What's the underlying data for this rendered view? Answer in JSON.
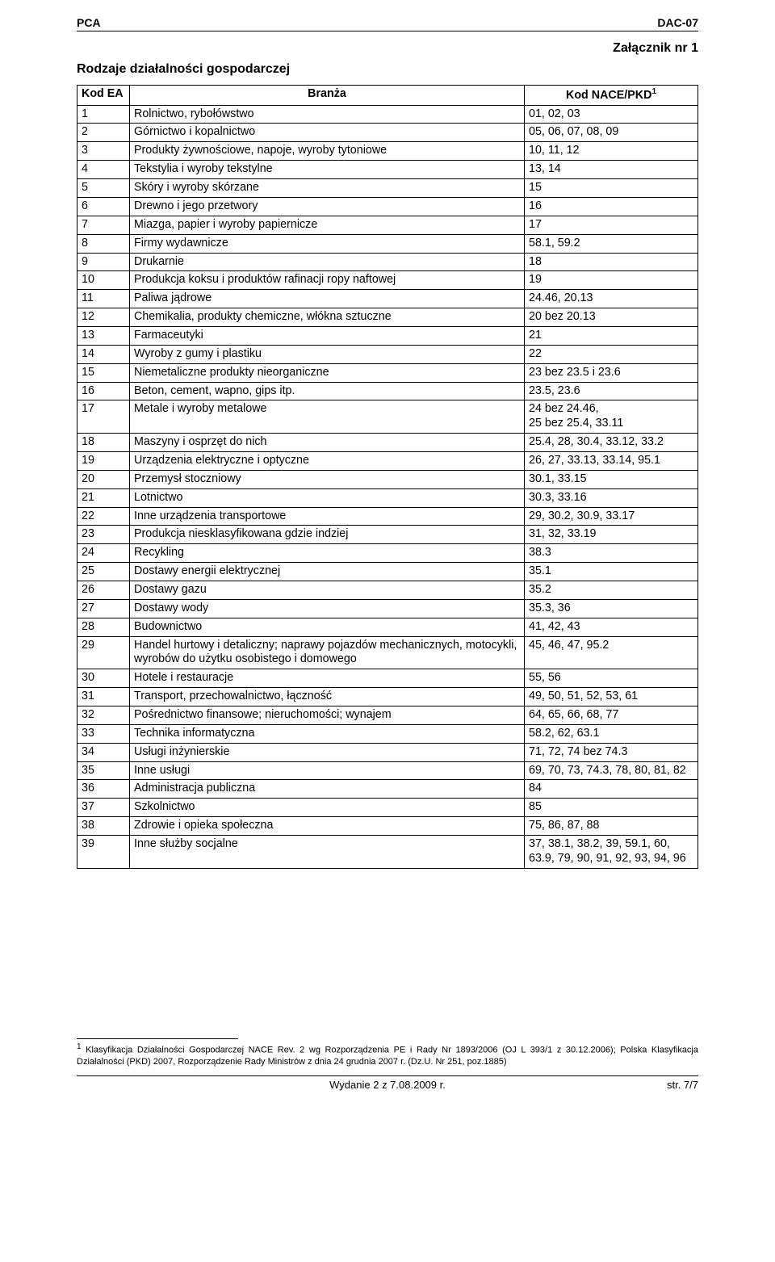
{
  "header": {
    "left": "PCA",
    "right": "DAC-07"
  },
  "section_title": "Rodzaje działalności gospodarczej",
  "attachment_label": "Załącznik nr 1",
  "table": {
    "columns": [
      "Kod EA",
      "Branża",
      "Kod NACE/PKD"
    ],
    "header_sup": "1",
    "rows": [
      [
        "1",
        "Rolnictwo, rybołówstwo",
        "01, 02, 03"
      ],
      [
        "2",
        "Górnictwo i kopalnictwo",
        "05, 06, 07, 08, 09"
      ],
      [
        "3",
        "Produkty żywnościowe, napoje, wyroby tytoniowe",
        "10, 11, 12"
      ],
      [
        "4",
        "Tekstylia i wyroby tekstylne",
        "13, 14"
      ],
      [
        "5",
        "Skóry i wyroby skórzane",
        "15"
      ],
      [
        "6",
        "Drewno i jego przetwory",
        "16"
      ],
      [
        "7",
        "Miazga, papier i wyroby papiernicze",
        "17"
      ],
      [
        "8",
        "Firmy wydawnicze",
        "58.1, 59.2"
      ],
      [
        "9",
        "Drukarnie",
        "18"
      ],
      [
        "10",
        "Produkcja koksu i produktów rafinacji ropy naftowej",
        "19"
      ],
      [
        "11",
        "Paliwa jądrowe",
        "24.46, 20.13"
      ],
      [
        "12",
        "Chemikalia, produkty chemiczne, włókna sztuczne",
        "20 bez 20.13"
      ],
      [
        "13",
        "Farmaceutyki",
        "21"
      ],
      [
        "14",
        "Wyroby z gumy i plastiku",
        "22"
      ],
      [
        "15",
        "Niemetaliczne produkty nieorganiczne",
        "23 bez 23.5 i 23.6"
      ],
      [
        "16",
        "Beton, cement, wapno, gips itp.",
        "23.5, 23.6"
      ],
      [
        "17",
        "Metale i wyroby metalowe",
        "24 bez 24.46,\n25 bez 25.4, 33.11"
      ],
      [
        "18",
        "Maszyny i osprzęt do nich",
        "25.4, 28, 30.4, 33.12, 33.2"
      ],
      [
        "19",
        "Urządzenia elektryczne i optyczne",
        "26, 27, 33.13, 33.14, 95.1"
      ],
      [
        "20",
        "Przemysł stoczniowy",
        "30.1, 33.15"
      ],
      [
        "21",
        "Lotnictwo",
        "30.3, 33.16"
      ],
      [
        "22",
        "Inne urządzenia transportowe",
        "29, 30.2, 30.9, 33.17"
      ],
      [
        "23",
        "Produkcja niesklasyfikowana gdzie indziej",
        "31, 32, 33.19"
      ],
      [
        "24",
        "Recykling",
        "38.3"
      ],
      [
        "25",
        "Dostawy energii elektrycznej",
        "35.1"
      ],
      [
        "26",
        "Dostawy gazu",
        "35.2"
      ],
      [
        "27",
        "Dostawy wody",
        "35.3, 36"
      ],
      [
        "28",
        "Budownictwo",
        "41, 42, 43"
      ],
      [
        "29",
        "Handel hurtowy i detaliczny; naprawy pojazdów mechanicznych, motocykli, wyrobów do użytku osobistego i domowego",
        "45, 46, 47, 95.2"
      ],
      [
        "30",
        "Hotele i restauracje",
        "55, 56"
      ],
      [
        "31",
        "Transport, przechowalnictwo, łączność",
        "49, 50, 51, 52, 53, 61"
      ],
      [
        "32",
        "Pośrednictwo finansowe; nieruchomości; wynajem",
        "64, 65, 66, 68, 77"
      ],
      [
        "33",
        "Technika informatyczna",
        "58.2, 62, 63.1"
      ],
      [
        "34",
        "Usługi inżynierskie",
        "71, 72, 74 bez 74.3"
      ],
      [
        "35",
        "Inne usługi",
        "69, 70, 73, 74.3, 78, 80, 81, 82"
      ],
      [
        "36",
        "Administracja publiczna",
        "84"
      ],
      [
        "37",
        "Szkolnictwo",
        "85"
      ],
      [
        "38",
        "Zdrowie i opieka społeczna",
        "75, 86, 87, 88"
      ],
      [
        "39",
        "Inne służby socjalne",
        "37, 38.1, 38.2, 39, 59.1, 60, 63.9, 79, 90, 91, 92, 93, 94, 96"
      ]
    ]
  },
  "footnote": {
    "marker": "1",
    "text": "Klasyfikacja Działalności Gospodarczej NACE Rev. 2 wg Rozporządzenia PE i Rady Nr 1893/2006 (OJ L 393/1 z 30.12.2006); Polska Klasyfikacja Działalności (PKD) 2007, Rozporządzenie Rady Ministrów z dnia 24 grudnia 2007 r. (Dz.U. Nr 251, poz.1885)"
  },
  "footer": {
    "center": "Wydanie 2 z 7.08.2009 r.",
    "right": "str. 7/7"
  }
}
